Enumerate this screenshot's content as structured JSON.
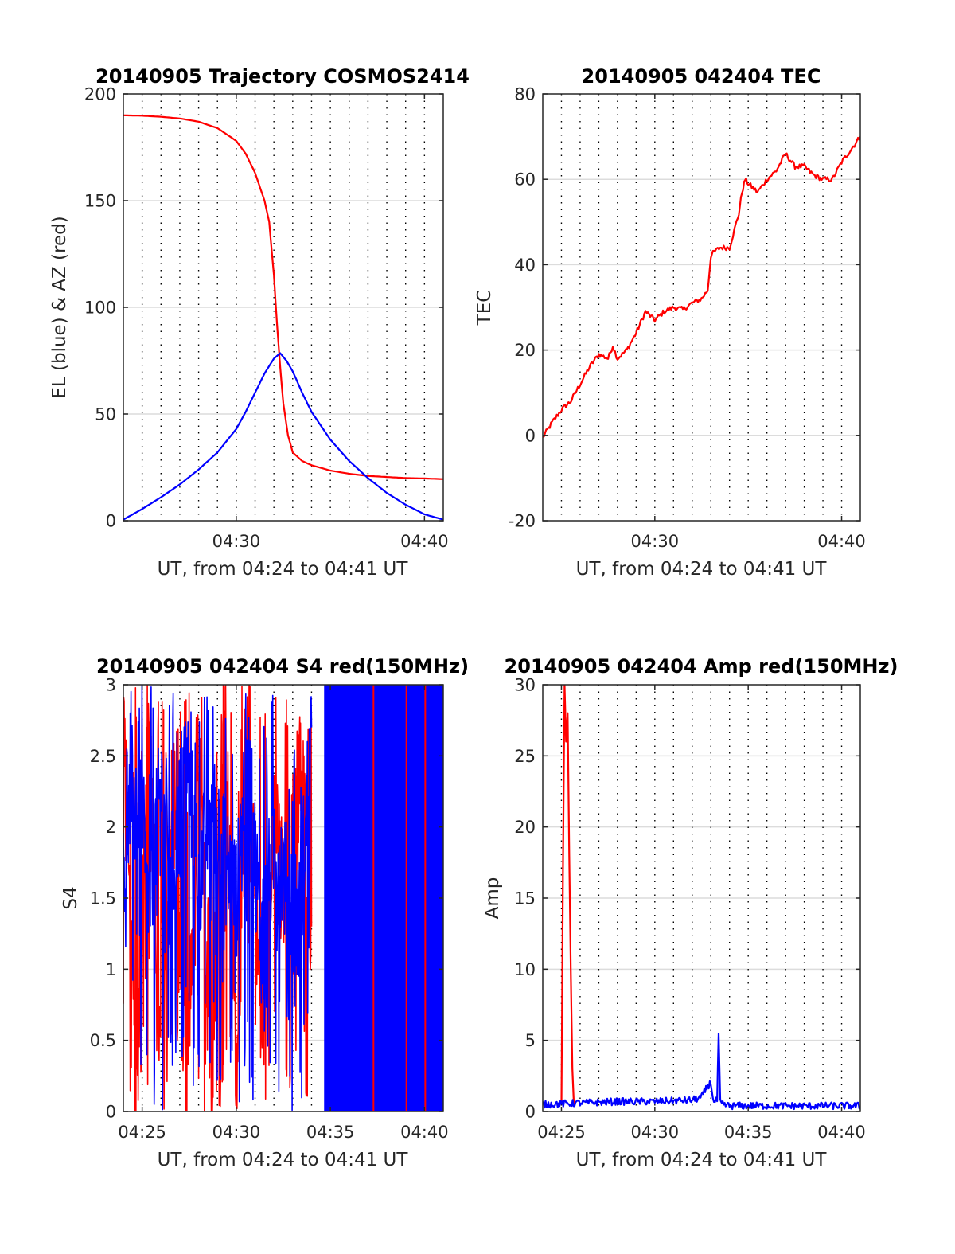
{
  "figure": {
    "background": "#ffffff",
    "axis_color": "#262626",
    "grid_color": "#dcdcdc"
  },
  "chart_data": [
    {
      "id": "trajectory",
      "type": "line",
      "title": "20140905 Trajectory COSMOS2414",
      "xlabel": "UT, from 04:24 to 04:41 UT",
      "ylabel": "EL (blue) & AZ (red)",
      "xlim": [
        "04:24",
        "04:41"
      ],
      "ylim": [
        0,
        200
      ],
      "xticks": [
        "04:30",
        "04:40"
      ],
      "yticks": [
        0,
        50,
        100,
        150,
        200
      ],
      "grid": "dotted vertical every minute, light horizontal at y ticks",
      "series": [
        {
          "color": "#ff0000",
          "x": [
            "04:24:00",
            "04:25:00",
            "04:26:00",
            "04:27:00",
            "04:28:00",
            "04:29:00",
            "04:30:00",
            "04:30:30",
            "04:31:00",
            "04:31:30",
            "04:31:45",
            "04:32:00",
            "04:32:10",
            "04:32:20",
            "04:32:30",
            "04:32:45",
            "04:33:00",
            "04:33:30",
            "04:34:00",
            "04:35:00",
            "04:36:00",
            "04:37:00",
            "04:38:00",
            "04:39:00",
            "04:40:00",
            "04:41:00"
          ],
          "values": [
            190,
            189.8,
            189.3,
            188.5,
            187,
            184,
            178,
            172,
            163,
            150,
            140,
            115,
            92,
            72,
            55,
            40,
            32,
            28,
            26,
            23.5,
            22,
            21,
            20.5,
            20,
            19.8,
            19.5
          ]
        },
        {
          "color": "#0000ff",
          "x": [
            "04:24:00",
            "04:25:00",
            "04:26:00",
            "04:27:00",
            "04:28:00",
            "04:29:00",
            "04:30:00",
            "04:30:30",
            "04:31:00",
            "04:31:30",
            "04:32:00",
            "04:32:20",
            "04:32:40",
            "04:33:00",
            "04:33:30",
            "04:34:00",
            "04:35:00",
            "04:36:00",
            "04:37:00",
            "04:38:00",
            "04:39:00",
            "04:40:00",
            "04:41:00"
          ],
          "values": [
            0.5,
            5.5,
            11,
            17,
            24,
            32,
            43,
            51,
            60,
            69,
            76,
            78.5,
            75,
            70,
            60,
            51,
            38,
            28,
            20,
            13,
            7.5,
            3,
            0.5
          ]
        }
      ]
    },
    {
      "id": "tec",
      "type": "line",
      "title": "20140905 042404 TEC",
      "xlabel": "UT, from 04:24 to 04:41 UT",
      "ylabel": "TEC",
      "xlim": [
        "04:24",
        "04:41"
      ],
      "ylim": [
        -20,
        80
      ],
      "xticks": [
        "04:30",
        "04:40"
      ],
      "yticks": [
        -20,
        0,
        20,
        40,
        60,
        80
      ],
      "grid": "dotted vertical every minute, light horizontal at y ticks",
      "series": [
        {
          "color": "#ff0000",
          "x": [
            "04:24:00",
            "04:24:30",
            "04:25:00",
            "04:25:30",
            "04:26:00",
            "04:26:30",
            "04:27:00",
            "04:27:30",
            "04:27:45",
            "04:28:00",
            "04:28:30",
            "04:29:00",
            "04:29:30",
            "04:30:00",
            "04:30:30",
            "04:31:00",
            "04:31:30",
            "04:32:00",
            "04:32:30",
            "04:32:50",
            "04:33:00",
            "04:33:10",
            "04:33:30",
            "04:34:00",
            "04:34:30",
            "04:34:40",
            "04:34:50",
            "04:35:00",
            "04:35:30",
            "04:36:00",
            "04:36:30",
            "04:37:00",
            "04:37:30",
            "04:38:00",
            "04:38:30",
            "04:39:00",
            "04:39:30",
            "04:40:00",
            "04:40:30",
            "04:41:00"
          ],
          "values": [
            -0.5,
            3,
            6,
            8,
            12,
            16,
            19,
            18,
            21,
            18,
            20,
            24,
            29,
            27,
            29,
            30,
            29.5,
            31,
            32,
            34,
            42,
            43,
            44,
            44,
            52,
            57,
            60,
            59,
            57,
            60,
            62,
            66,
            63,
            63,
            61,
            60,
            60,
            64,
            67,
            70
          ]
        }
      ]
    },
    {
      "id": "s4",
      "type": "line",
      "title": "20140905 042404 S4 red(150MHz)",
      "xlabel": "UT, from 04:24 to 04:41 UT",
      "ylabel": "S4",
      "xlim": [
        "04:24",
        "04:41"
      ],
      "ylim": [
        0,
        3
      ],
      "xticks": [
        "04:25",
        "04:30",
        "04:35",
        "04:40"
      ],
      "yticks": [
        0,
        0.5,
        1,
        1.5,
        2,
        2.5,
        3
      ],
      "grid": "dotted vertical every minute, light horizontal at y ticks",
      "series": [
        {
          "color": "#ff0000",
          "x": [
            "04:24:00",
            "04:24:40",
            "04:25:20",
            "04:26:00",
            "04:26:40",
            "04:27:20",
            "04:28:00",
            "04:28:40",
            "04:29:20",
            "04:30:00",
            "04:30:40",
            "04:31:20",
            "04:32:00",
            "04:32:40",
            "04:33:20",
            "04:34:00"
          ],
          "values": [
            3,
            0,
            3,
            0.2,
            2.4,
            0,
            2.6,
            0.1,
            3,
            0.3,
            2.8,
            0.5,
            2.2,
            1.3,
            2.6,
            1.3
          ]
        },
        {
          "color": "#0000ff",
          "x": [
            "04:24:00",
            "04:24:40",
            "04:25:20",
            "04:26:00",
            "04:26:40",
            "04:27:20",
            "04:28:00",
            "04:28:40",
            "04:29:20",
            "04:30:00",
            "04:30:40",
            "04:31:20",
            "04:32:00",
            "04:32:40",
            "04:33:20",
            "04:34:00"
          ],
          "values": [
            1.8,
            2.5,
            1.4,
            2.3,
            1.7,
            2.6,
            1.6,
            2.2,
            1.8,
            1.5,
            2.4,
            1.2,
            1.9,
            1.6,
            1.3,
            2.7
          ]
        }
      ],
      "dense_bands": [
        {
          "color": "#0000ff",
          "from": "04:34:40",
          "to": "04:41:00",
          "range": [
            0,
            3
          ]
        },
        {
          "color": "#ff0000",
          "from": "04:37:15",
          "to": "04:37:20",
          "range": [
            0,
            3
          ]
        },
        {
          "color": "#ff0000",
          "from": "04:39:00",
          "to": "04:39:05",
          "range": [
            0,
            3
          ]
        },
        {
          "color": "#ff0000",
          "from": "04:40:00",
          "to": "04:40:05",
          "range": [
            0,
            3
          ]
        }
      ]
    },
    {
      "id": "amp",
      "type": "line",
      "title": "20140905 042404 Amp red(150MHz)",
      "xlabel": "UT, from 04:24 to 04:41 UT",
      "ylabel": "Amp",
      "xlim": [
        "04:24",
        "04:41"
      ],
      "ylim": [
        0,
        30
      ],
      "xticks": [
        "04:25",
        "04:30",
        "04:35",
        "04:40"
      ],
      "yticks": [
        0,
        5,
        10,
        15,
        20,
        25,
        30
      ],
      "grid": "dotted vertical every minute, light horizontal at y ticks",
      "series": [
        {
          "color": "#ff0000",
          "x": [
            "04:25:00",
            "04:25:05",
            "04:25:10",
            "04:25:15",
            "04:25:20",
            "04:25:25",
            "04:25:30",
            "04:25:35",
            "04:25:40"
          ],
          "values": [
            0.5,
            17,
            30,
            26,
            28,
            18,
            10,
            3,
            0.5
          ]
        },
        {
          "color": "#0000ff",
          "x": [
            "04:24:00",
            "04:26:00",
            "04:28:00",
            "04:30:00",
            "04:32:00",
            "04:32:30",
            "04:32:50",
            "04:33:00",
            "04:33:10",
            "04:33:20",
            "04:33:25",
            "04:33:30",
            "04:33:35",
            "04:34:00",
            "04:36:00",
            "04:38:00",
            "04:40:00",
            "04:41:00"
          ],
          "values": [
            0.5,
            0.6,
            0.7,
            0.7,
            0.8,
            1,
            1.8,
            2,
            0.6,
            0.8,
            5.3,
            0.7,
            0.5,
            0.4,
            0.4,
            0.4,
            0.4,
            0.4
          ]
        }
      ]
    }
  ]
}
